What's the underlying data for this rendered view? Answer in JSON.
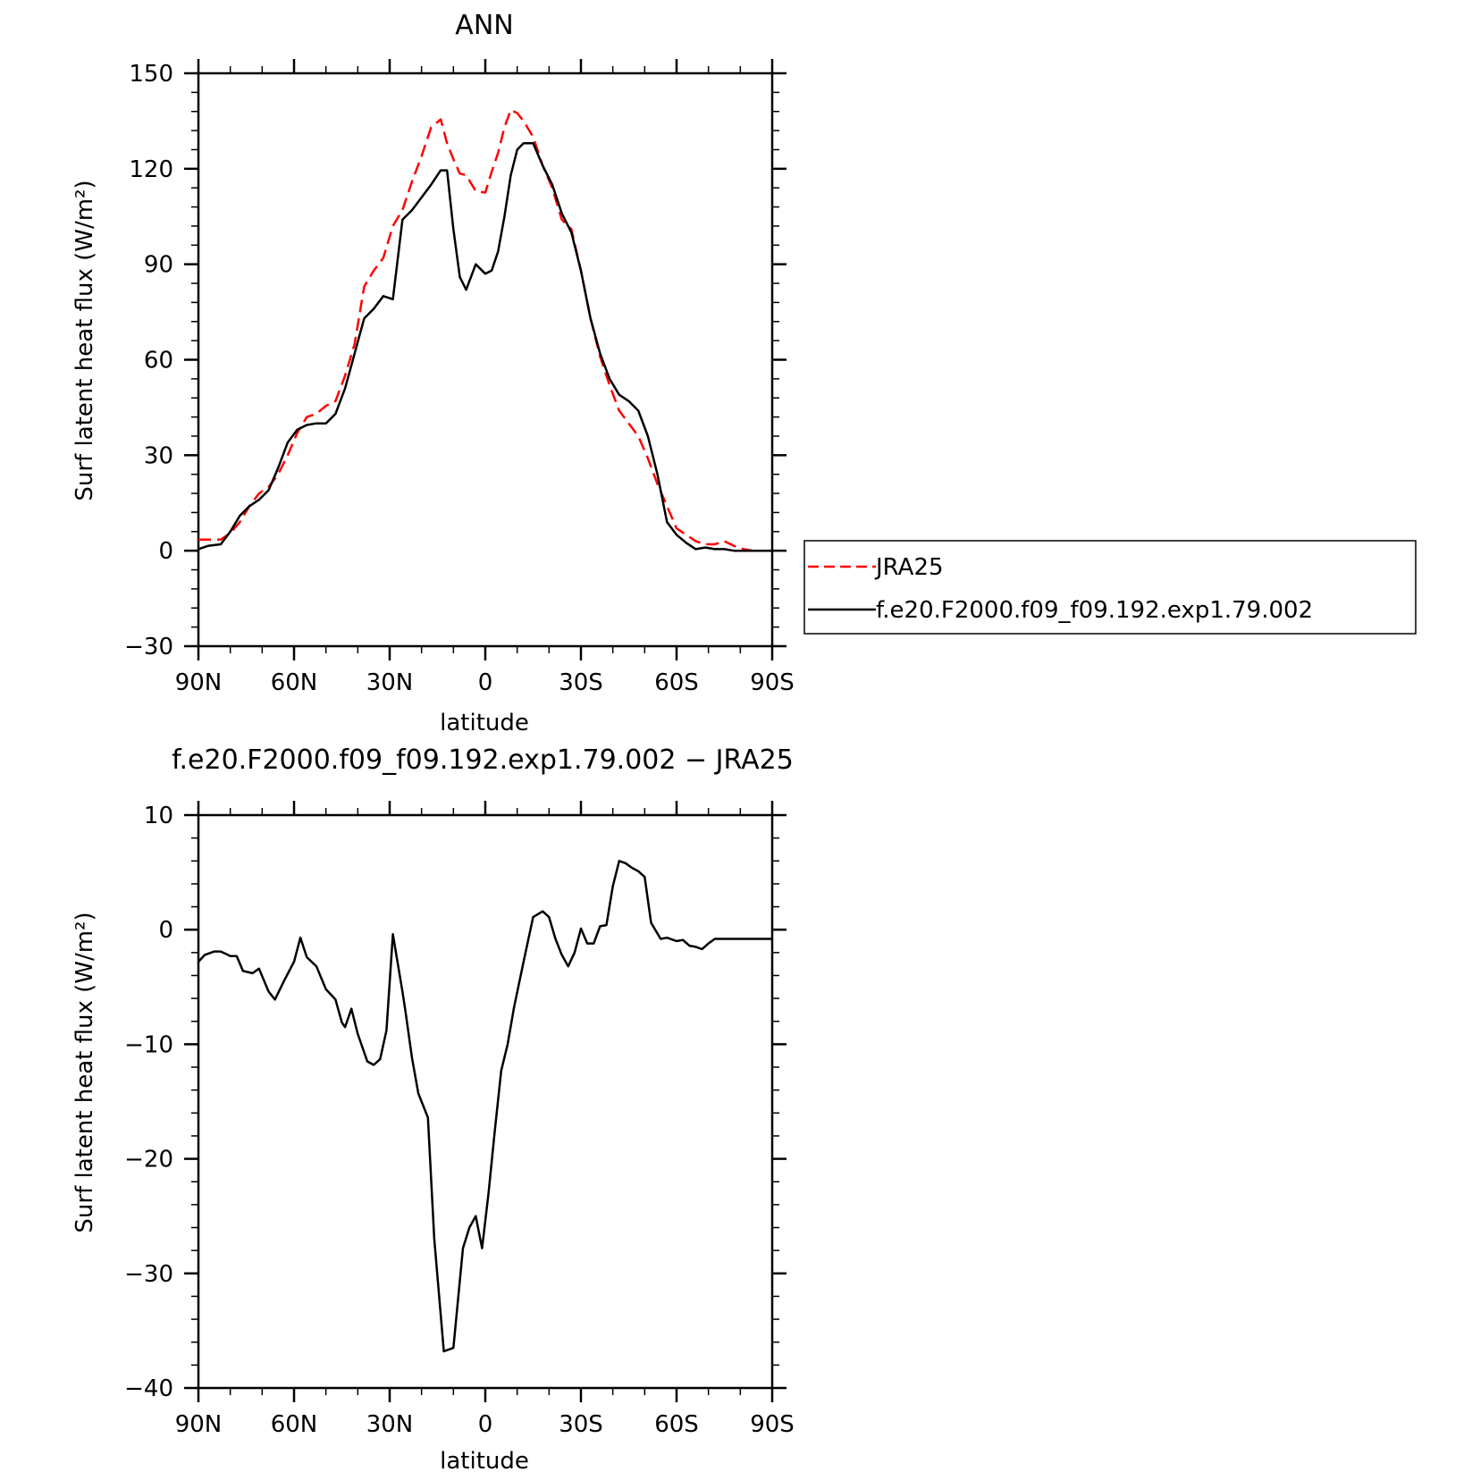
{
  "colors": {
    "jra25": "#ff0000",
    "model": "#000000",
    "axis": "#000000",
    "background": "#ffffff"
  },
  "chart_data": [
    {
      "type": "line",
      "title": "ANN",
      "xlabel": "latitude",
      "ylabel": "Surf latent heat flux (W/m²)",
      "xlim": [
        90,
        -90
      ],
      "ylim": [
        -30,
        150
      ],
      "x_ticks": [
        {
          "value": 90,
          "label": "90N"
        },
        {
          "value": 60,
          "label": "60N"
        },
        {
          "value": 30,
          "label": "30N"
        },
        {
          "value": 0,
          "label": "0"
        },
        {
          "value": -30,
          "label": "30S"
        },
        {
          "value": -60,
          "label": "60S"
        },
        {
          "value": -90,
          "label": "90S"
        }
      ],
      "y_ticks": [
        {
          "value": 150,
          "label": "150"
        },
        {
          "value": 120,
          "label": "120"
        },
        {
          "value": 90,
          "label": "90"
        },
        {
          "value": 60,
          "label": "60"
        },
        {
          "value": 30,
          "label": "30"
        },
        {
          "value": 0,
          "label": "0"
        },
        {
          "value": -30,
          "label": "−30"
        }
      ],
      "legend": {
        "position": "right",
        "entries": [
          "JRA25",
          "f.e20.F2000.f09_f09.192.exp1.79.002"
        ]
      },
      "series": [
        {
          "name": "JRA25",
          "style": "dashed",
          "color": "#ff0000",
          "x": [
            90,
            83,
            80,
            77,
            74,
            71,
            68,
            65,
            62,
            59,
            56,
            53,
            50,
            47,
            44,
            41,
            38,
            35,
            32,
            29,
            26,
            23,
            20,
            17,
            14,
            12,
            10,
            8,
            6,
            3,
            0,
            -2,
            -4,
            -6,
            -8,
            -10,
            -12,
            -15,
            -18,
            -21,
            -24,
            -27,
            -30,
            -33,
            -36,
            -39,
            -42,
            -45,
            -48,
            -51,
            -54,
            -57,
            -60,
            -63,
            -66,
            -69,
            -72,
            -75,
            -78,
            -81,
            -84,
            -87,
            -90
          ],
          "y": [
            3.5,
            3.5,
            5.5,
            9,
            14,
            18,
            20,
            24,
            30,
            37,
            42,
            43,
            45.5,
            47,
            55,
            65,
            83,
            88,
            92,
            102,
            107,
            116,
            124,
            133,
            135.5,
            128,
            123,
            118.5,
            118,
            113,
            112.5,
            119,
            125,
            133,
            138.5,
            137.5,
            135,
            130,
            121,
            114,
            104,
            101,
            88,
            73,
            61,
            52,
            44,
            40,
            36,
            29,
            21,
            14,
            7,
            5,
            3,
            2,
            2,
            3,
            1.5,
            0.5,
            0,
            0,
            0
          ]
        },
        {
          "name": "f.e20.F2000.f09_f09.192.exp1.79.002",
          "style": "solid",
          "color": "#000000",
          "x": [
            90,
            87,
            83,
            80,
            77,
            74,
            71,
            68,
            65,
            62,
            59,
            56,
            53,
            50,
            47,
            44,
            41,
            38,
            35,
            32,
            29,
            26,
            23,
            20,
            17,
            14,
            12,
            10,
            8,
            6,
            3,
            0,
            -2,
            -4,
            -6,
            -8,
            -10,
            -12,
            -15,
            -18,
            -21,
            -24,
            -27,
            -30,
            -33,
            -36,
            -39,
            -42,
            -45,
            -48,
            -51,
            -54,
            -57,
            -60,
            -63,
            -66,
            -69,
            -72,
            -75,
            -78,
            -81,
            -84,
            -87,
            -90
          ],
          "y": [
            0.5,
            1.5,
            2,
            6,
            11,
            14,
            16,
            19,
            26,
            34,
            38,
            39.5,
            40,
            40,
            43,
            51,
            62,
            73,
            76,
            80,
            79,
            104,
            107,
            111,
            115,
            119.5,
            119.5,
            101,
            86,
            82,
            90,
            87,
            88,
            94,
            105,
            118,
            126,
            128,
            128,
            121,
            115,
            106,
            100,
            88,
            73,
            62,
            54,
            49,
            47,
            44,
            36,
            24,
            9,
            5,
            2.5,
            0.5,
            1,
            0.5,
            0.5,
            0,
            0,
            0,
            0,
            0
          ]
        }
      ]
    },
    {
      "type": "line",
      "title": "f.e20.F2000.f09_f09.192.exp1.79.002 − JRA25",
      "xlabel": "latitude",
      "ylabel": "Surf latent heat flux (W/m²)",
      "xlim": [
        90,
        -90
      ],
      "ylim": [
        -40,
        10
      ],
      "x_ticks": [
        {
          "value": 90,
          "label": "90N"
        },
        {
          "value": 60,
          "label": "60N"
        },
        {
          "value": 30,
          "label": "30N"
        },
        {
          "value": 0,
          "label": "0"
        },
        {
          "value": -30,
          "label": "30S"
        },
        {
          "value": -60,
          "label": "60S"
        },
        {
          "value": -90,
          "label": "90S"
        }
      ],
      "y_ticks": [
        {
          "value": 10,
          "label": "10"
        },
        {
          "value": 0,
          "label": "0"
        },
        {
          "value": -10,
          "label": "−10"
        },
        {
          "value": -20,
          "label": "−20"
        },
        {
          "value": -30,
          "label": "−30"
        },
        {
          "value": -40,
          "label": "−40"
        }
      ],
      "series": [
        {
          "style": "solid",
          "color": "#000000",
          "x": [
            90,
            88,
            85,
            83,
            80,
            78,
            76,
            73,
            71,
            68,
            66,
            63,
            60,
            58,
            56,
            53,
            50,
            47,
            45,
            44,
            42,
            40,
            37,
            35,
            33,
            31,
            29,
            26,
            25,
            23,
            21,
            18,
            16,
            13,
            10,
            7,
            5,
            3,
            1,
            -1,
            -3,
            -5,
            -7,
            -9,
            -12,
            -15,
            -18,
            -20,
            -22,
            -24,
            -26,
            -28,
            -30,
            -32,
            -34,
            -36,
            -38,
            -40,
            -42,
            -44,
            -46,
            -48,
            -50,
            -52,
            -55,
            -57,
            -60,
            -62,
            -64,
            -66,
            -68,
            -70,
            -72,
            -74,
            -76,
            -78,
            -80,
            -82,
            -84,
            -86,
            -88,
            -90
          ],
          "y": [
            -2.8,
            -2.2,
            -1.9,
            -1.9,
            -2.3,
            -2.3,
            -3.6,
            -3.8,
            -3.4,
            -5.4,
            -6.1,
            -4.4,
            -2.8,
            -0.7,
            -2.4,
            -3.2,
            -5.2,
            -6.1,
            -8.1,
            -8.5,
            -6.9,
            -9.1,
            -11.5,
            -11.8,
            -11.3,
            -8.8,
            -0.4,
            -5.4,
            -7.2,
            -11.2,
            -14.3,
            -16.4,
            -27,
            -36.8,
            -36.5,
            -27.8,
            -26,
            -25,
            -27.8,
            -23,
            -17.5,
            -12.3,
            -10,
            -6.8,
            -2.8,
            1.1,
            1.6,
            1.1,
            -0.8,
            -2.2,
            -3.2,
            -2,
            0.1,
            -1.2,
            -1.2,
            0.3,
            0.4,
            3.8,
            6,
            5.8,
            5.4,
            5.1,
            4.6,
            0.6,
            -0.8,
            -0.7,
            -1,
            -0.9,
            -1.4,
            -1.5,
            -1.7,
            -1.2,
            -0.8,
            -0.8,
            -0.8,
            -0.8,
            -0.8,
            -0.8,
            -0.8,
            -0.8,
            -0.8,
            -0.8
          ]
        }
      ]
    }
  ]
}
